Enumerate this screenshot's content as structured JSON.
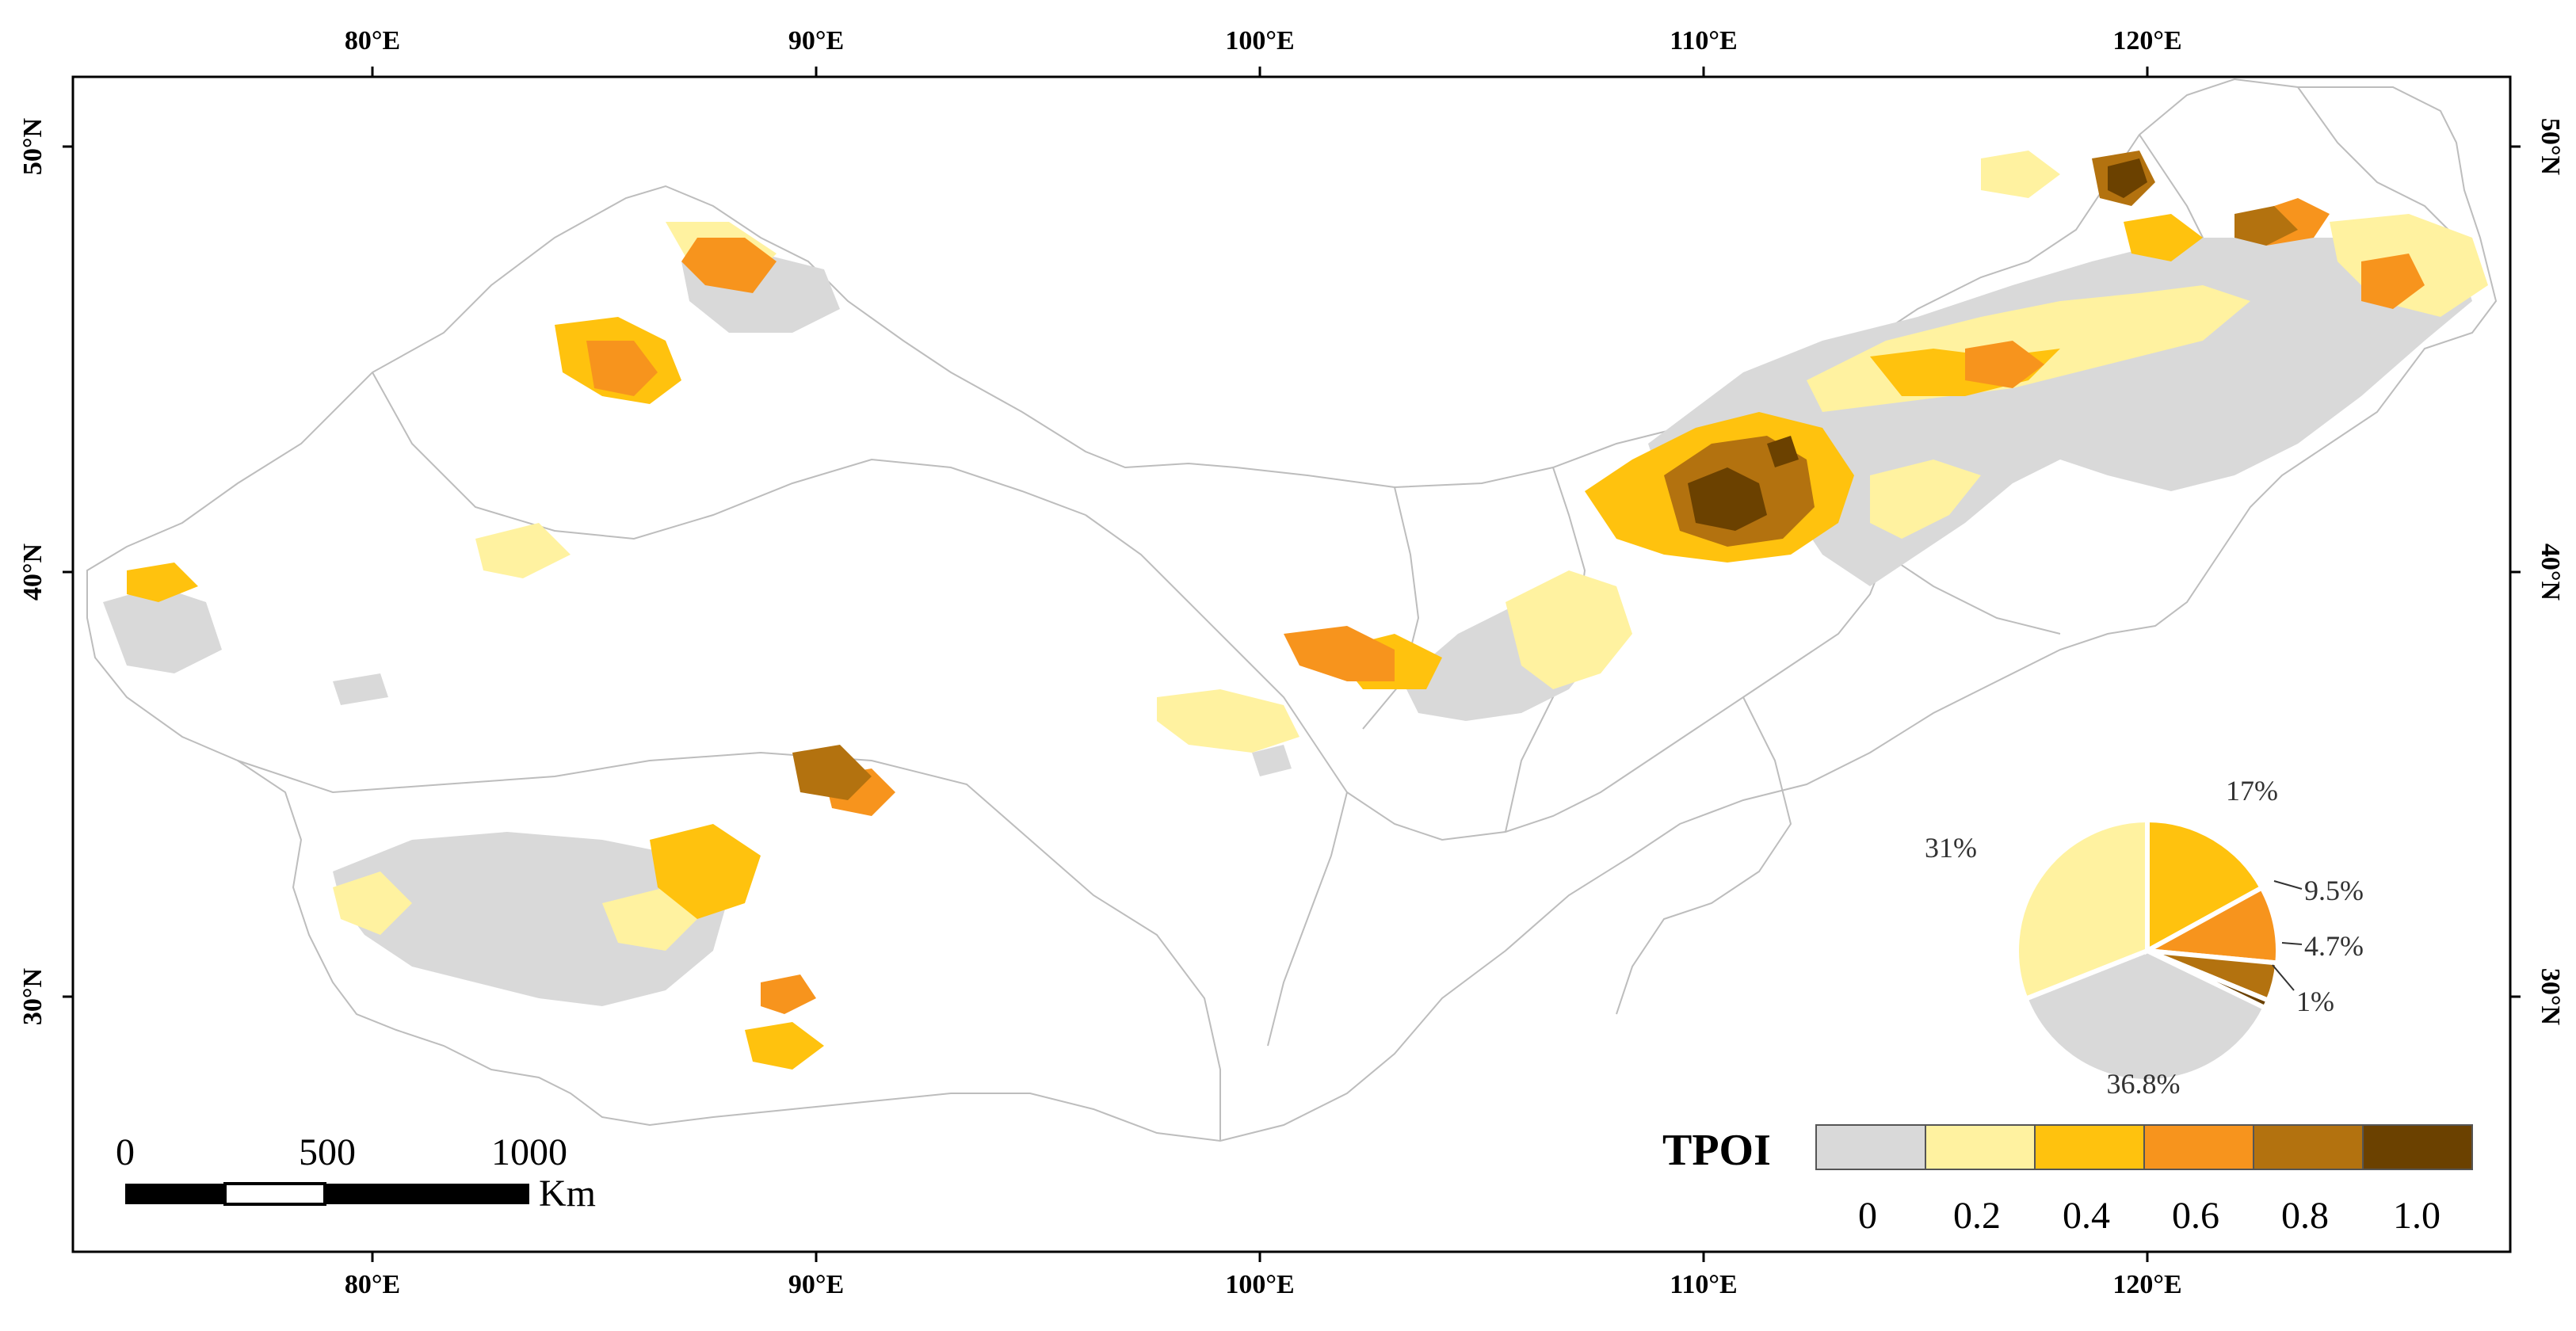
{
  "map": {
    "lon_ticks": [
      "80°E",
      "90°E",
      "100°E",
      "110°E",
      "120°E"
    ],
    "lat_ticks": [
      "50°N",
      "40°N",
      "30°N"
    ]
  },
  "legend": {
    "title": "TPOI",
    "tick_labels": [
      "0",
      "0.2",
      "0.4",
      "0.6",
      "0.8",
      "1.0"
    ],
    "class_colors": [
      "#d9d9d9",
      "#fff2a0",
      "#ffc20e",
      "#f7941d",
      "#b3720f",
      "#6b4100"
    ]
  },
  "scale_bar": {
    "labels": [
      "0",
      "500",
      "1000"
    ],
    "unit": "Km"
  },
  "pie": {
    "labels": [
      "36.8%",
      "31%",
      "17%",
      "9.5%",
      "4.7%",
      "1%"
    ],
    "values": [
      36.8,
      31,
      17,
      9.5,
      4.7,
      1
    ],
    "colors": [
      "#d9d9d9",
      "#fff2a0",
      "#ffc20e",
      "#f7941d",
      "#b3720f",
      "#6b4100"
    ]
  }
}
